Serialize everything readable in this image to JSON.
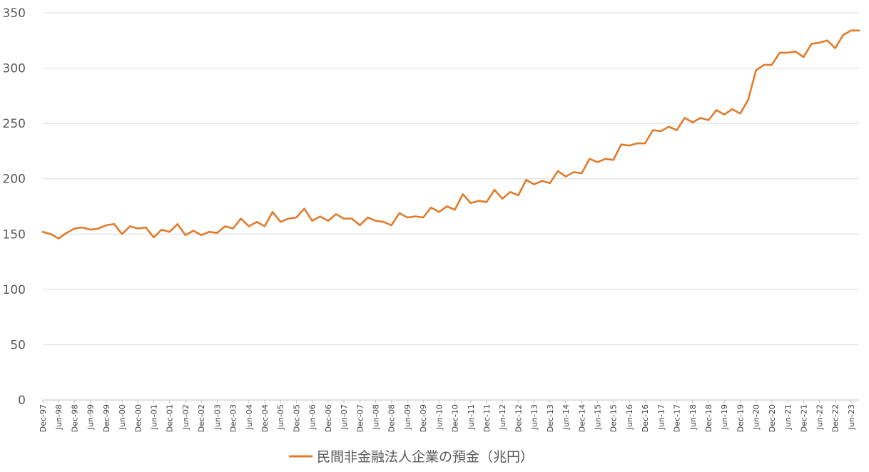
{
  "chart_data": {
    "type": "line",
    "y_ticks": [
      0,
      50,
      100,
      150,
      200,
      250,
      300,
      350
    ],
    "ylim": [
      0,
      350
    ],
    "x_tick_labels": [
      "Dec-97",
      "Jun-98",
      "Dec-98",
      "Jun-99",
      "Dec-99",
      "Jun-00",
      "Dec-00",
      "Jun-01",
      "Dec-01",
      "Jun-02",
      "Dec-02",
      "Jun-03",
      "Dec-03",
      "Jun-04",
      "Dec-04",
      "Jun-05",
      "Dec-05",
      "Jun-06",
      "Dec-06",
      "Jun-07",
      "Dec-07",
      "Jun-08",
      "Dec-08",
      "Jun-09",
      "Dec-09",
      "Jun-10",
      "Dec-10",
      "Jun-11",
      "Dec-11",
      "Jun-12",
      "Dec-12",
      "Jun-13",
      "Dec-13",
      "Jun-14",
      "Dec-14",
      "Jun-15",
      "Dec-15",
      "Jun-16",
      "Dec-16",
      "Jun-17",
      "Dec-17",
      "Jun-18",
      "Dec-18",
      "Jun-19",
      "Dec-19",
      "Jun-20",
      "Dec-20",
      "Jun-21",
      "Dec-21",
      "Jun-22",
      "Dec-22",
      "Jun-23"
    ],
    "grid": "horizontal",
    "legend_position": "bottom",
    "series": [
      {
        "name": "民間非金融法人企業の預金（兆円）",
        "color": "#e07b2a",
        "x": [
          "Dec-97",
          "Mar-98",
          "Jun-98",
          "Sep-98",
          "Dec-98",
          "Mar-99",
          "Jun-99",
          "Sep-99",
          "Dec-99",
          "Mar-00",
          "Jun-00",
          "Sep-00",
          "Dec-00",
          "Mar-01",
          "Jun-01",
          "Sep-01",
          "Dec-01",
          "Mar-02",
          "Jun-02",
          "Sep-02",
          "Dec-02",
          "Mar-03",
          "Jun-03",
          "Sep-03",
          "Dec-03",
          "Mar-04",
          "Jun-04",
          "Sep-04",
          "Dec-04",
          "Mar-05",
          "Jun-05",
          "Sep-05",
          "Dec-05",
          "Mar-06",
          "Jun-06",
          "Sep-06",
          "Dec-06",
          "Mar-07",
          "Jun-07",
          "Sep-07",
          "Dec-07",
          "Mar-08",
          "Jun-08",
          "Sep-08",
          "Dec-08",
          "Mar-09",
          "Jun-09",
          "Sep-09",
          "Dec-09",
          "Mar-10",
          "Jun-10",
          "Sep-10",
          "Dec-10",
          "Mar-11",
          "Jun-11",
          "Sep-11",
          "Dec-11",
          "Mar-12",
          "Jun-12",
          "Sep-12",
          "Dec-12",
          "Mar-13",
          "Jun-13",
          "Sep-13",
          "Dec-13",
          "Mar-14",
          "Jun-14",
          "Sep-14",
          "Dec-14",
          "Mar-15",
          "Jun-15",
          "Sep-15",
          "Dec-15",
          "Mar-16",
          "Jun-16",
          "Sep-16",
          "Dec-16",
          "Mar-17",
          "Jun-17",
          "Sep-17",
          "Dec-17",
          "Mar-18",
          "Jun-18",
          "Sep-18",
          "Dec-18",
          "Mar-19",
          "Jun-19",
          "Sep-19",
          "Dec-19",
          "Mar-20",
          "Jun-20",
          "Sep-20",
          "Dec-20",
          "Mar-21",
          "Jun-21",
          "Sep-21",
          "Dec-21",
          "Mar-22",
          "Jun-22",
          "Sep-22",
          "Dec-22",
          "Mar-23",
          "Jun-23",
          "Sep-23"
        ],
        "values": [
          152,
          150,
          146,
          151,
          155,
          156,
          154,
          155,
          158,
          159,
          150,
          157,
          155,
          156,
          147,
          154,
          152,
          159,
          149,
          153,
          149,
          152,
          151,
          157,
          155,
          164,
          157,
          161,
          157,
          170,
          161,
          164,
          165,
          173,
          162,
          166,
          162,
          168,
          164,
          164,
          158,
          165,
          162,
          161,
          158,
          169,
          165,
          166,
          165,
          174,
          170,
          175,
          172,
          186,
          178,
          180,
          179,
          190,
          182,
          188,
          185,
          199,
          195,
          198,
          196,
          207,
          202,
          206,
          205,
          218,
          215,
          218,
          217,
          231,
          230,
          232,
          232,
          244,
          243,
          247,
          244,
          255,
          251,
          255,
          253,
          262,
          258,
          263,
          259,
          271,
          298,
          303,
          303,
          314,
          314,
          315,
          310,
          322,
          323,
          325,
          318,
          330,
          334,
          334
        ]
      }
    ]
  }
}
